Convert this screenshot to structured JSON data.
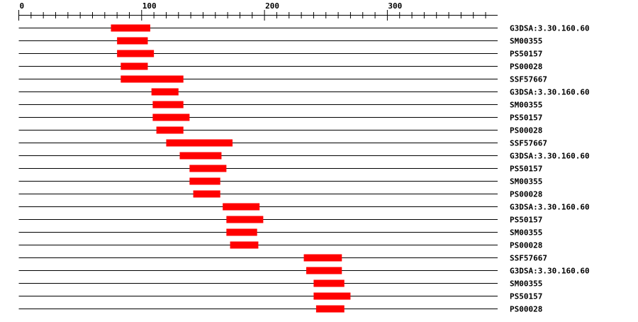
{
  "axis": {
    "min": 0,
    "max": 390,
    "major_ticks": [
      0,
      100,
      200,
      300
    ],
    "minor_step": 10,
    "tick_labels": [
      "0",
      "100",
      "200",
      "300"
    ]
  },
  "colors": {
    "domain": "#ff0000",
    "line": "#000000"
  },
  "tracks": [
    {
      "label": "G3DSA:3.30.160.60",
      "start": 75,
      "end": 107
    },
    {
      "label": "SM00355",
      "start": 80,
      "end": 105
    },
    {
      "label": "PS50157",
      "start": 80,
      "end": 110
    },
    {
      "label": "PS00028",
      "start": 83,
      "end": 105
    },
    {
      "label": "SSF57667",
      "start": 83,
      "end": 134
    },
    {
      "label": "G3DSA:3.30.160.60",
      "start": 108,
      "end": 130
    },
    {
      "label": "SM00355",
      "start": 109,
      "end": 134
    },
    {
      "label": "PS50157",
      "start": 109,
      "end": 139
    },
    {
      "label": "PS00028",
      "start": 112,
      "end": 134
    },
    {
      "label": "SSF57667",
      "start": 120,
      "end": 174
    },
    {
      "label": "G3DSA:3.30.160.60",
      "start": 131,
      "end": 165
    },
    {
      "label": "PS50157",
      "start": 139,
      "end": 169
    },
    {
      "label": "SM00355",
      "start": 139,
      "end": 164
    },
    {
      "label": "PS00028",
      "start": 142,
      "end": 164
    },
    {
      "label": "G3DSA:3.30.160.60",
      "start": 166,
      "end": 196
    },
    {
      "label": "PS50157",
      "start": 169,
      "end": 199
    },
    {
      "label": "SM00355",
      "start": 169,
      "end": 194
    },
    {
      "label": "PS00028",
      "start": 172,
      "end": 195
    },
    {
      "label": "SSF57667",
      "start": 232,
      "end": 263
    },
    {
      "label": "G3DSA:3.30.160.60",
      "start": 234,
      "end": 263
    },
    {
      "label": "SM00355",
      "start": 240,
      "end": 265
    },
    {
      "label": "PS50157",
      "start": 240,
      "end": 270
    },
    {
      "label": "PS00028",
      "start": 242,
      "end": 265
    }
  ]
}
